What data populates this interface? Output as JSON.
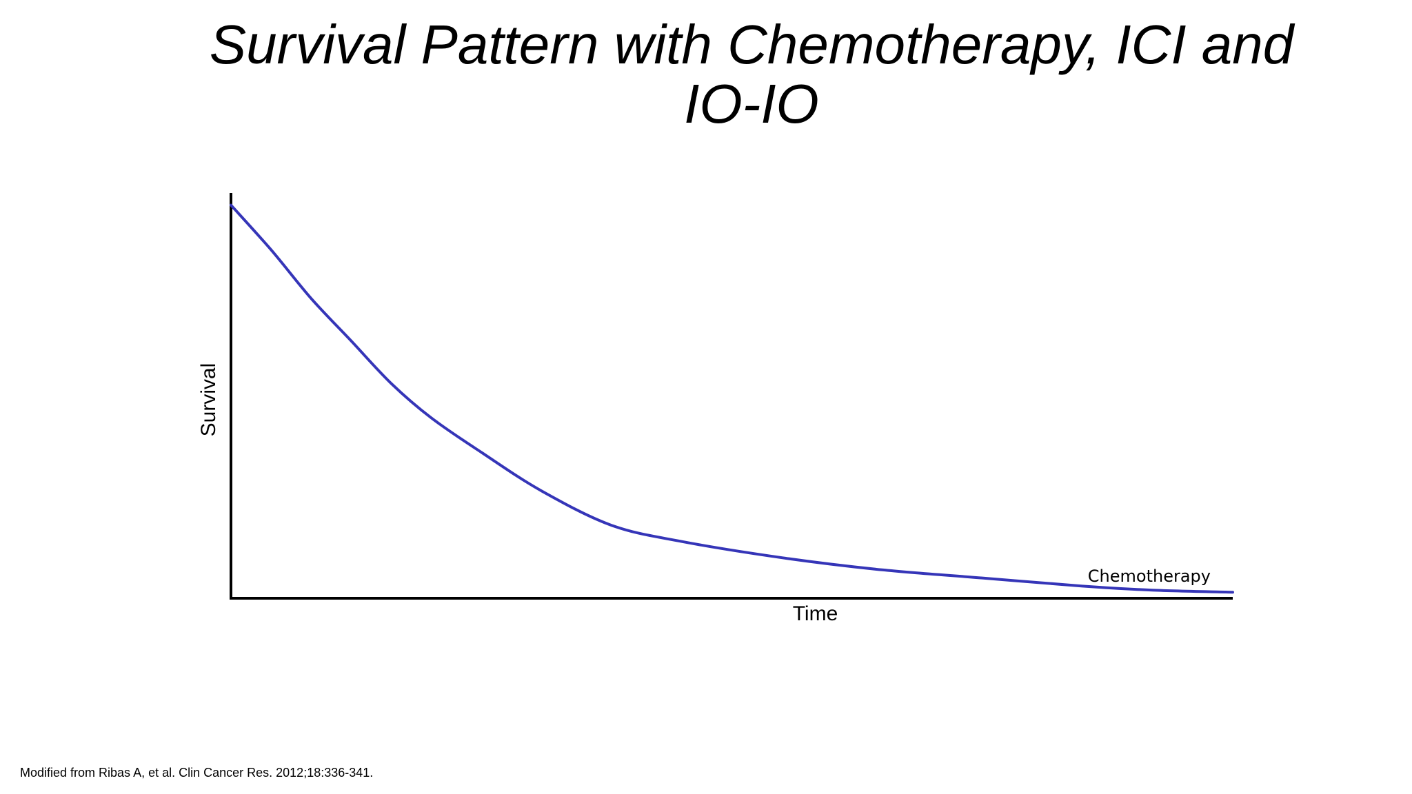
{
  "slide": {
    "title": "Survival Pattern with Chemotherapy, ICI and IO-IO",
    "source_note": "Modified from Ribas A, et al. Clin Cancer Res. 2012;18:336-341."
  },
  "chart_data": {
    "type": "line",
    "title": "Survival Pattern with Chemotherapy, ICI and IO-IO",
    "xlabel": "Time",
    "ylabel": "Survival",
    "xlim": [
      0,
      100
    ],
    "ylim": [
      0,
      100
    ],
    "grid": false,
    "ticks": false,
    "series": [
      {
        "name": "Chemotherapy",
        "color": "#3535b8",
        "x": [
          0,
          4,
          8,
          12,
          16,
          20,
          25,
          31,
          38,
          45,
          55,
          65,
          75,
          85,
          92,
          100
        ],
        "y": [
          97,
          86,
          74,
          63.5,
          53,
          44.5,
          36,
          26.5,
          18,
          14,
          10,
          7,
          5,
          3,
          2,
          1.5
        ]
      }
    ]
  }
}
